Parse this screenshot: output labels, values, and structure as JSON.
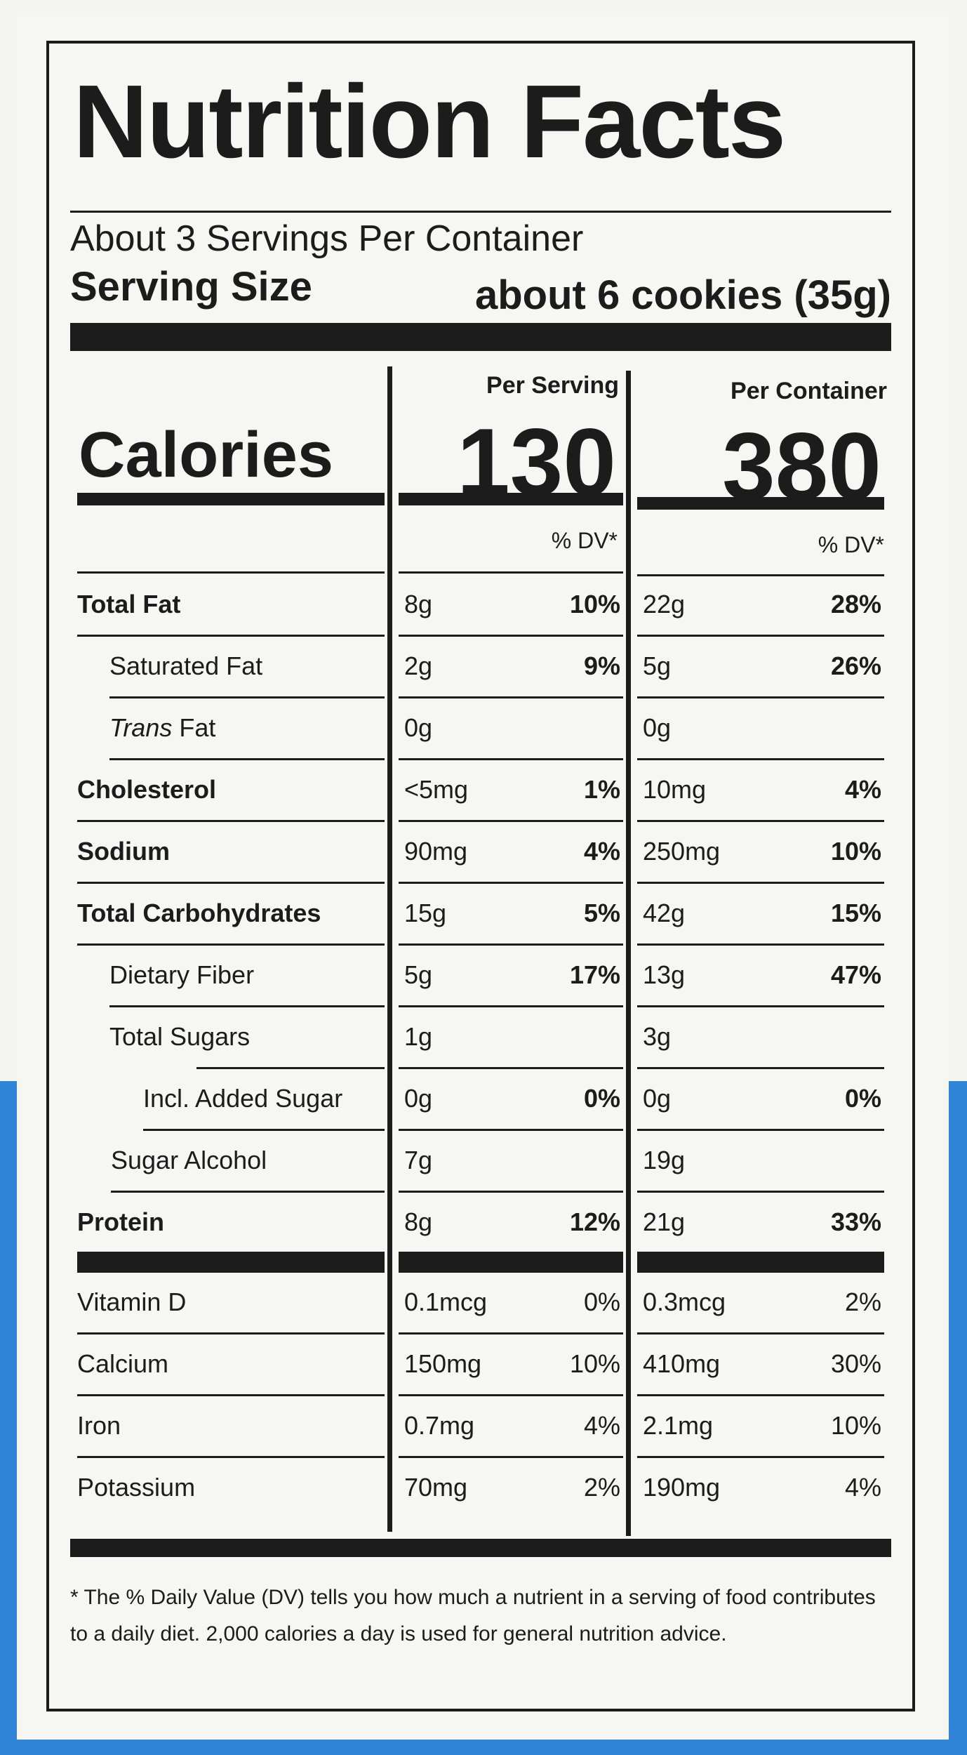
{
  "title": "Nutrition Facts",
  "servings_per_container": "About 3 Servings Per Container",
  "serving_size": {
    "label": "Serving Size",
    "value": "about 6 cookies (35g)"
  },
  "columns": {
    "per_serving": "Per Serving",
    "per_container": "Per Container"
  },
  "calories": {
    "label": "Calories",
    "per_serving": "130",
    "per_container": "380"
  },
  "dv_header": "% DV*",
  "nutrients": [
    {
      "name": "Total Fat",
      "bold": true,
      "indent": 0,
      "serving_amount": "8g",
      "serving_dv": "10%",
      "container_amount": "22g",
      "container_dv": "28%"
    },
    {
      "name": "Saturated Fat",
      "bold": false,
      "indent": 1,
      "serving_amount": "2g",
      "serving_dv": "9%",
      "container_amount": "5g",
      "container_dv": "26%"
    },
    {
      "name_italic": "Trans",
      "name": " Fat",
      "bold": false,
      "indent": 1,
      "serving_amount": "0g",
      "serving_dv": "",
      "container_amount": "0g",
      "container_dv": ""
    },
    {
      "name": "Cholesterol",
      "bold": true,
      "indent": 0,
      "serving_amount": "<5mg",
      "serving_dv": "1%",
      "container_amount": "10mg",
      "container_dv": "4%"
    },
    {
      "name": "Sodium",
      "bold": true,
      "indent": 0,
      "serving_amount": "90mg",
      "serving_dv": "4%",
      "container_amount": "250mg",
      "container_dv": "10%"
    },
    {
      "name": "Total Carbohydrates",
      "bold": true,
      "indent": 0,
      "serving_amount": "15g",
      "serving_dv": "5%",
      "container_amount": "42g",
      "container_dv": "15%"
    },
    {
      "name": "Dietary Fiber",
      "bold": false,
      "indent": 1,
      "serving_amount": "5g",
      "serving_dv": "17%",
      "container_amount": "13g",
      "container_dv": "47%"
    },
    {
      "name": "Total Sugars",
      "bold": false,
      "indent": 1,
      "serving_amount": "1g",
      "serving_dv": "",
      "container_amount": "3g",
      "container_dv": ""
    },
    {
      "name": "Incl. Added Sugar",
      "bold": false,
      "indent": 2,
      "serving_amount": "0g",
      "serving_dv": "0%",
      "container_amount": "0g",
      "container_dv": "0%"
    },
    {
      "name": "Sugar Alcohol",
      "bold": false,
      "indent": 1,
      "serving_amount": "7g",
      "serving_dv": "",
      "container_amount": "19g",
      "container_dv": ""
    },
    {
      "name": "Protein",
      "bold": true,
      "indent": 0,
      "serving_amount": "8g",
      "serving_dv": "12%",
      "container_amount": "21g",
      "container_dv": "33%"
    }
  ],
  "vitamins": [
    {
      "name": "Vitamin D",
      "serving_amount": "0.1mcg",
      "serving_dv": "0%",
      "container_amount": "0.3mcg",
      "container_dv": "2%"
    },
    {
      "name": "Calcium",
      "serving_amount": "150mg",
      "serving_dv": "10%",
      "container_amount": "410mg",
      "container_dv": "30%"
    },
    {
      "name": "Iron",
      "serving_amount": "0.7mg",
      "serving_dv": "4%",
      "container_amount": "2.1mg",
      "container_dv": "10%"
    },
    {
      "name": "Potassium",
      "serving_amount": "70mg",
      "serving_dv": "2%",
      "container_amount": "190mg",
      "container_dv": "4%"
    }
  ],
  "footnote": "* The % Daily Value (DV) tells you how much a nutrient in a serving of food contributes to a daily diet. 2,000 calories a day is used for general nutrition advice.",
  "colors": {
    "ink": "#1c1c1c",
    "label_background": "#f6f6f3",
    "package_blue": "#2f84d8"
  }
}
